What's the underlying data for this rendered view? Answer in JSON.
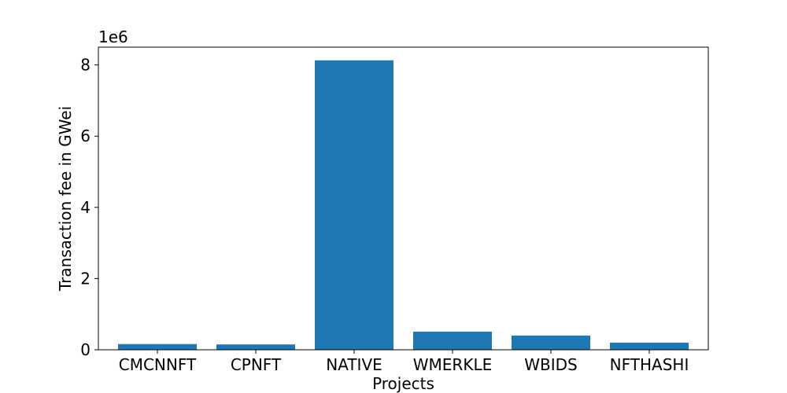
{
  "chart_data": {
    "type": "bar",
    "categories": [
      "CMCNNFT",
      "CPNFT",
      "NATIVE",
      "WMERKLE",
      "WBIDS",
      "NFTHASHI"
    ],
    "values": [
      160000,
      150000,
      8130000,
      510000,
      400000,
      200000
    ],
    "xlabel": "Projects",
    "ylabel": "Transaction fee in GWei",
    "y_offset_label": "1e6",
    "y_scale": 1000000,
    "ylim": [
      0,
      8500000
    ],
    "y_ticks": [
      0,
      2000000,
      4000000,
      6000000,
      8000000
    ],
    "y_tick_labels": [
      "0",
      "2",
      "4",
      "6",
      "8"
    ],
    "grid": false,
    "colors": {
      "bar": "#1f77b4",
      "axis": "#000000"
    }
  }
}
